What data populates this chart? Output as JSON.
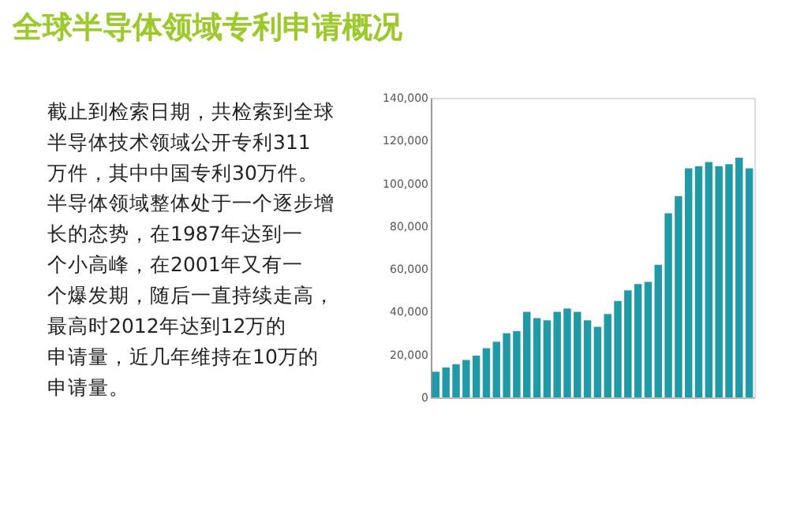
{
  "chart_data": [
    {
      "type": "other",
      "title": "全球半导体领域专利申请概况",
      "annotations": [
        "截止到检索日期，共检索到全球半导体技术领域公开专利311万件，其中中国专利30万件。",
        "半导体领域整体处于一个逐步增长的态势，在1987年达到一个小高峰，在2001年又有一个爆发期，随后一直持续走高，最高时2012年达到12万的申请量，近几年维持在10万的申请量。"
      ]
    },
    {
      "type": "bar",
      "color": "#1f9aa6",
      "tick_labels": "y",
      "grid": false,
      "categories": [
        null,
        null,
        null,
        null,
        null,
        null,
        null,
        null,
        null,
        null,
        null,
        null,
        null,
        null,
        null,
        null,
        null,
        null,
        null,
        null,
        null,
        null,
        null,
        null,
        null,
        null,
        null,
        null,
        null,
        null,
        null,
        null
      ],
      "values": [
        12000,
        14000,
        15500,
        17500,
        19500,
        23000,
        26000,
        30000,
        31000,
        40000,
        37000,
        36000,
        40000,
        41500,
        40000,
        36000,
        33000,
        39000,
        45000,
        50000,
        53000,
        54000,
        62000,
        86000,
        94000,
        107000,
        108000,
        110000,
        108000,
        109000,
        112000,
        107000
      ],
      "ylim": [
        0,
        140000
      ],
      "yticks": [
        0,
        {
          "value": 20000,
          "label": "20,000"
        },
        {
          "value": 40000,
          "label": "40,000"
        },
        {
          "value": 60000,
          "label": "60,000"
        },
        {
          "value": 80000,
          "label": "80,000"
        },
        {
          "value": 100000,
          "label": "100,000"
        },
        {
          "value": 120000,
          "label": "120,000"
        },
        {
          "value": 140000,
          "label": "140,000"
        }
      ]
    }
  ]
}
